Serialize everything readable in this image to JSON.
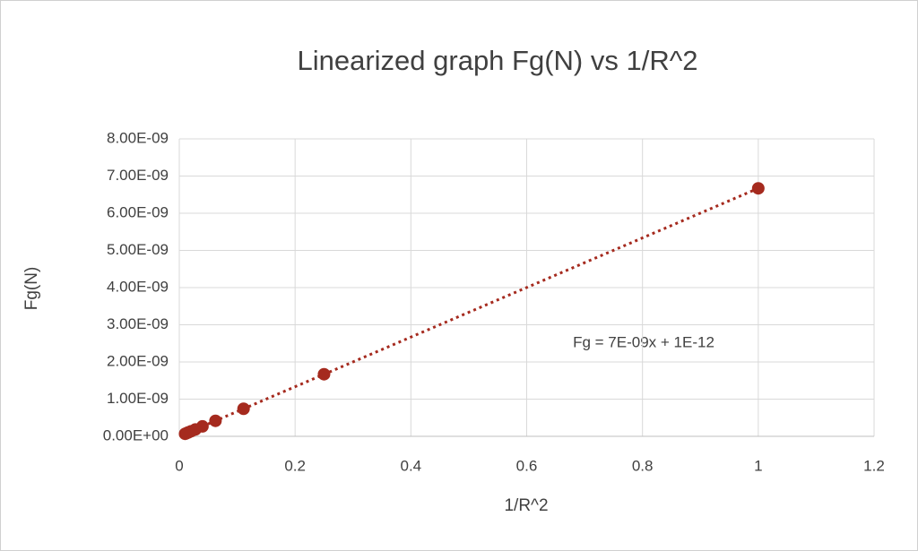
{
  "chart_data": {
    "type": "scatter",
    "title": "Linearized graph Fg(N) vs 1/R^2",
    "xlabel": "1/R^2",
    "ylabel": "Fg(N)",
    "x": [
      1,
      0.25,
      0.111,
      0.0625,
      0.04,
      0.0278,
      0.0204,
      0.0156,
      0.0123,
      0.01
    ],
    "values": [
      6.67e-09,
      1.67e-09,
      7.41e-10,
      4.17e-10,
      2.67e-10,
      1.85e-10,
      1.36e-10,
      1.04e-10,
      8.2e-11,
      6.7e-11
    ],
    "color": "#a52a1e",
    "xlim": [
      0,
      1.2
    ],
    "xticks": [
      0,
      0.2,
      0.4,
      0.6,
      0.8,
      1,
      1.2
    ],
    "ylim": [
      0,
      8e-09
    ],
    "yticks": [
      {
        "value": 0,
        "label": "0.00E+00"
      },
      {
        "value": 1e-09,
        "label": "1.00E-09"
      },
      {
        "value": 2e-09,
        "label": "2.00E-09"
      },
      {
        "value": 3e-09,
        "label": "3.00E-09"
      },
      {
        "value": 4e-09,
        "label": "4.00E-09"
      },
      {
        "value": 5e-09,
        "label": "5.00E-09"
      },
      {
        "value": 6e-09,
        "label": "6.00E-09"
      },
      {
        "value": 7e-09,
        "label": "7.00E-09"
      },
      {
        "value": 8e-09,
        "label": "8.00E-09"
      }
    ],
    "grid": true,
    "trendline": {
      "type": "linear",
      "label": "Fg = 7E-09x + 1E-12"
    }
  }
}
